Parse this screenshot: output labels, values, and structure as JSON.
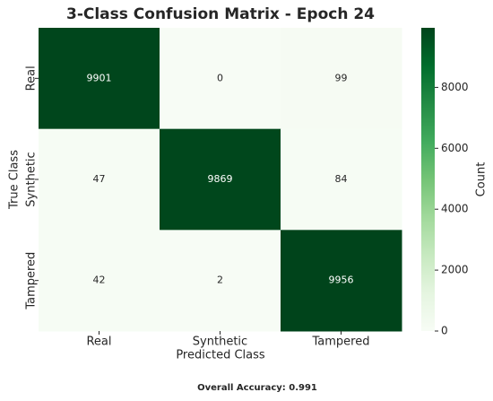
{
  "chart_data": {
    "type": "heatmap",
    "title": "3-Class Confusion Matrix - Epoch 24",
    "xlabel": "Predicted Class",
    "ylabel": "True Class",
    "x_categories": [
      "Real",
      "Synthetic",
      "Tampered"
    ],
    "y_categories": [
      "Real",
      "Synthetic",
      "Tampered"
    ],
    "values": [
      [
        9901,
        0,
        99
      ],
      [
        47,
        9869,
        84
      ],
      [
        42,
        2,
        9956
      ]
    ],
    "colormap": "Greens",
    "colorbar_label": "Count",
    "clim": [
      0,
      9956
    ],
    "cticks": [
      0,
      2000,
      4000,
      6000,
      8000
    ],
    "footer": "Overall Accuracy: 0.991"
  }
}
